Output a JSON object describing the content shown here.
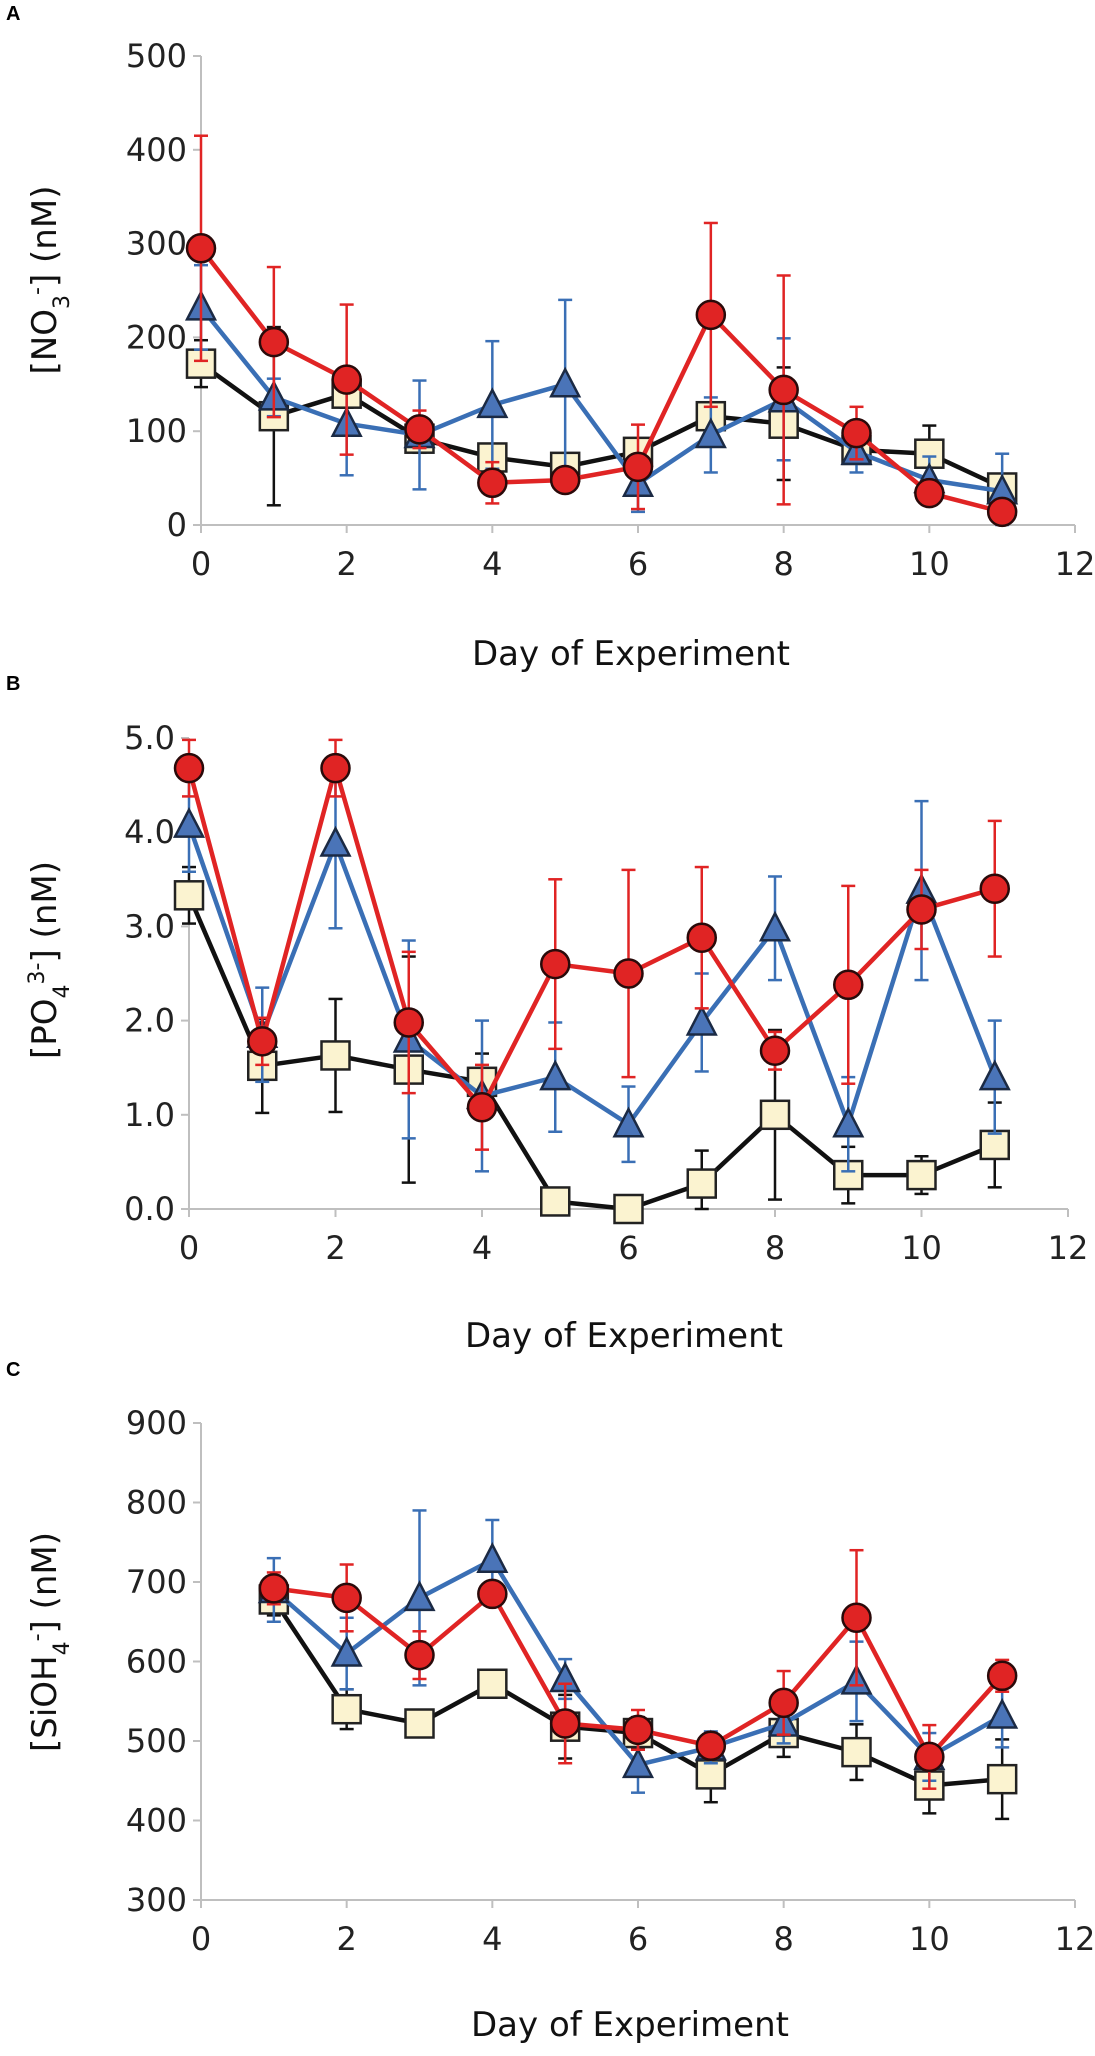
{
  "chart_data": [
    {
      "panel": "A",
      "type": "line",
      "xlabel": "Day of Experiment",
      "ylabel_parts": [
        "[NO",
        "3",
        "-",
        "] (nM)"
      ],
      "xlim": [
        0,
        12
      ],
      "ylim": [
        0,
        500
      ],
      "xticks": [
        0,
        2,
        4,
        6,
        8,
        10,
        12
      ],
      "yticks": [
        0,
        100,
        200,
        300,
        400,
        500
      ],
      "ytick_labels": [
        "0",
        "100",
        "200",
        "300",
        "400",
        "500"
      ],
      "series": [
        {
          "name": "squares",
          "marker": "square",
          "line_color": "#111111",
          "fill": "#fbf3d0",
          "error_color": "#111111",
          "x": [
            0,
            1,
            2,
            3,
            4,
            5,
            6,
            7,
            8,
            9,
            10,
            11
          ],
          "y": [
            172,
            116,
            140,
            92,
            72,
            62,
            78,
            116,
            108,
            80,
            76,
            40
          ],
          "err": [
            25,
            95,
            15,
            15,
            10,
            10,
            8,
            10,
            60,
            12,
            30,
            12
          ]
        },
        {
          "name": "triangles",
          "marker": "triangle",
          "line_color": "#3a6fb5",
          "fill": "#4a74b8",
          "error_color": "#3a6fb5",
          "x": [
            0,
            1,
            2,
            3,
            4,
            5,
            6,
            7,
            8,
            9,
            10,
            11
          ],
          "y": [
            232,
            136,
            108,
            96,
            128,
            150,
            44,
            96,
            134,
            78,
            48,
            36
          ],
          "err": [
            45,
            20,
            55,
            58,
            68,
            90,
            30,
            40,
            65,
            22,
            25,
            40
          ]
        },
        {
          "name": "circles",
          "marker": "circle",
          "line_color": "#e02424",
          "fill": "#e02424",
          "error_color": "#e02424",
          "x": [
            0,
            1,
            2,
            3,
            4,
            5,
            6,
            7,
            8,
            9,
            10,
            11
          ],
          "y": [
            295,
            195,
            155,
            102,
            45,
            48,
            62,
            224,
            144,
            98,
            34,
            14
          ],
          "err": [
            120,
            80,
            80,
            20,
            22,
            8,
            45,
            98,
            122,
            28,
            5,
            5
          ]
        }
      ]
    },
    {
      "panel": "B",
      "type": "line",
      "xlabel": "Day of Experiment",
      "ylabel_parts": [
        "[PO",
        "4",
        "3-",
        "] (nM)"
      ],
      "xlim": [
        0,
        12
      ],
      "ylim": [
        0,
        5
      ],
      "xticks": [
        0,
        2,
        4,
        6,
        8,
        10,
        12
      ],
      "yticks": [
        0,
        1,
        2,
        3,
        4,
        5
      ],
      "ytick_labels": [
        "0.0",
        "1.0",
        "2.0",
        "3.0",
        "4.0",
        "5.0"
      ],
      "series": [
        {
          "name": "squares",
          "marker": "square",
          "line_color": "#111111",
          "fill": "#fbf3d0",
          "error_color": "#111111",
          "x": [
            0,
            1,
            2,
            3,
            4,
            5,
            6,
            7,
            8,
            9,
            10,
            11
          ],
          "y": [
            3.33,
            1.52,
            1.63,
            1.48,
            1.35,
            0.08,
            0.0,
            0.27,
            1.0,
            0.36,
            0.36,
            0.68
          ],
          "err": [
            0.3,
            0.5,
            0.6,
            1.2,
            0.3,
            0.05,
            0.05,
            0.35,
            0.9,
            0.3,
            0.2,
            0.45
          ]
        },
        {
          "name": "triangles",
          "marker": "triangle",
          "line_color": "#3a6fb5",
          "fill": "#4a74b8",
          "error_color": "#3a6fb5",
          "x": [
            0,
            1,
            2,
            3,
            4,
            5,
            6,
            7,
            8,
            9,
            10,
            11
          ],
          "y": [
            4.08,
            1.85,
            3.88,
            1.8,
            1.2,
            1.4,
            0.9,
            1.98,
            2.98,
            0.9,
            3.38,
            1.4
          ],
          "err": [
            0.5,
            0.5,
            0.9,
            1.05,
            0.8,
            0.58,
            0.4,
            0.52,
            0.55,
            0.5,
            0.95,
            0.6
          ]
        },
        {
          "name": "circles",
          "marker": "circle",
          "line_color": "#e02424",
          "fill": "#e02424",
          "error_color": "#e02424",
          "x": [
            0,
            1,
            2,
            3,
            4,
            5,
            6,
            7,
            8,
            9,
            10,
            11
          ],
          "y": [
            4.68,
            1.78,
            4.68,
            1.98,
            1.08,
            2.6,
            2.5,
            2.88,
            1.68,
            2.38,
            3.18,
            3.4
          ],
          "err": [
            0.3,
            0.25,
            0.3,
            0.75,
            0.45,
            0.9,
            1.1,
            0.75,
            0.2,
            1.05,
            0.42,
            0.72
          ]
        }
      ]
    },
    {
      "panel": "C",
      "type": "line",
      "xlabel": "Day of Experiment",
      "ylabel_parts": [
        "[SiOH",
        "4",
        "-",
        "] (nM)"
      ],
      "xlim": [
        0,
        12
      ],
      "ylim": [
        300,
        900
      ],
      "xticks": [
        0,
        2,
        4,
        6,
        8,
        10,
        12
      ],
      "yticks": [
        300,
        400,
        500,
        600,
        700,
        800,
        900
      ],
      "ytick_labels": [
        "300",
        "400",
        "500",
        "600",
        "700",
        "800",
        "900"
      ],
      "series": [
        {
          "name": "squares",
          "marker": "square",
          "line_color": "#111111",
          "fill": "#fbf3d0",
          "error_color": "#111111",
          "x": [
            1,
            2,
            3,
            4,
            5,
            6,
            7,
            8,
            9,
            10,
            11
          ],
          "y": [
            678,
            540,
            522,
            572,
            518,
            510,
            458,
            510,
            486,
            444,
            452
          ],
          "err": [
            20,
            25,
            10,
            10,
            40,
            20,
            35,
            30,
            35,
            35,
            50
          ]
        },
        {
          "name": "triangles",
          "marker": "triangle",
          "line_color": "#3a6fb5",
          "fill": "#4a74b8",
          "error_color": "#3a6fb5",
          "x": [
            1,
            2,
            3,
            4,
            5,
            6,
            7,
            8,
            9,
            10,
            11
          ],
          "y": [
            690,
            610,
            680,
            728,
            578,
            470,
            492,
            522,
            575,
            480,
            532
          ],
          "err": [
            40,
            45,
            110,
            50,
            25,
            35,
            20,
            25,
            50,
            30,
            40
          ]
        },
        {
          "name": "circles",
          "marker": "circle",
          "line_color": "#e02424",
          "fill": "#e02424",
          "error_color": "#e02424",
          "x": [
            1,
            2,
            3,
            4,
            5,
            6,
            7,
            8,
            9,
            10,
            11
          ],
          "y": [
            692,
            680,
            608,
            685,
            522,
            514,
            494,
            548,
            655,
            480,
            582
          ],
          "err": [
            20,
            42,
            30,
            15,
            50,
            25,
            15,
            40,
            85,
            40,
            20
          ]
        }
      ]
    }
  ]
}
